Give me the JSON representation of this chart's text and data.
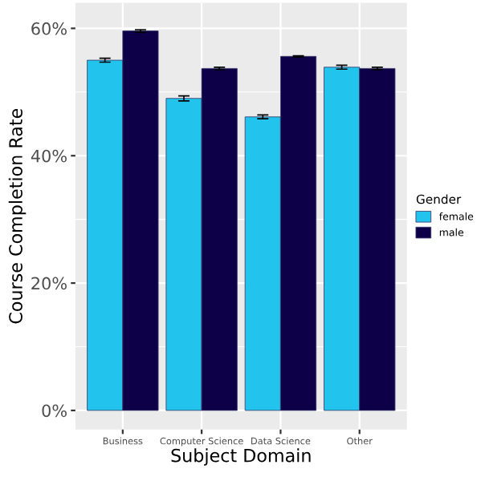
{
  "chart_data": {
    "type": "bar",
    "xlabel": "Subject Domain",
    "ylabel": "Course Completion Rate",
    "legend_title": "Gender",
    "categories": [
      "Business",
      "Computer Science",
      "Data Science",
      "Other"
    ],
    "series": [
      {
        "name": "female",
        "color": "#22c3ec",
        "values": [
          55.0,
          49.0,
          46.1,
          53.9
        ],
        "errors": [
          0.3,
          0.4,
          0.3,
          0.3
        ]
      },
      {
        "name": "male",
        "color": "#0d0048",
        "values": [
          59.6,
          53.7,
          55.6,
          53.7
        ],
        "errors": [
          0.2,
          0.2,
          0.1,
          0.2
        ]
      }
    ],
    "ylim": [
      -3,
      64
    ],
    "yticks": [
      {
        "value": 0,
        "label": "0%"
      },
      {
        "value": 10,
        "label": null
      },
      {
        "value": 20,
        "label": "20%"
      },
      {
        "value": 30,
        "label": null
      },
      {
        "value": 40,
        "label": "40%"
      },
      {
        "value": 50,
        "label": null
      },
      {
        "value": 60,
        "label": "60%"
      }
    ],
    "grid": true,
    "legend": "right"
  }
}
